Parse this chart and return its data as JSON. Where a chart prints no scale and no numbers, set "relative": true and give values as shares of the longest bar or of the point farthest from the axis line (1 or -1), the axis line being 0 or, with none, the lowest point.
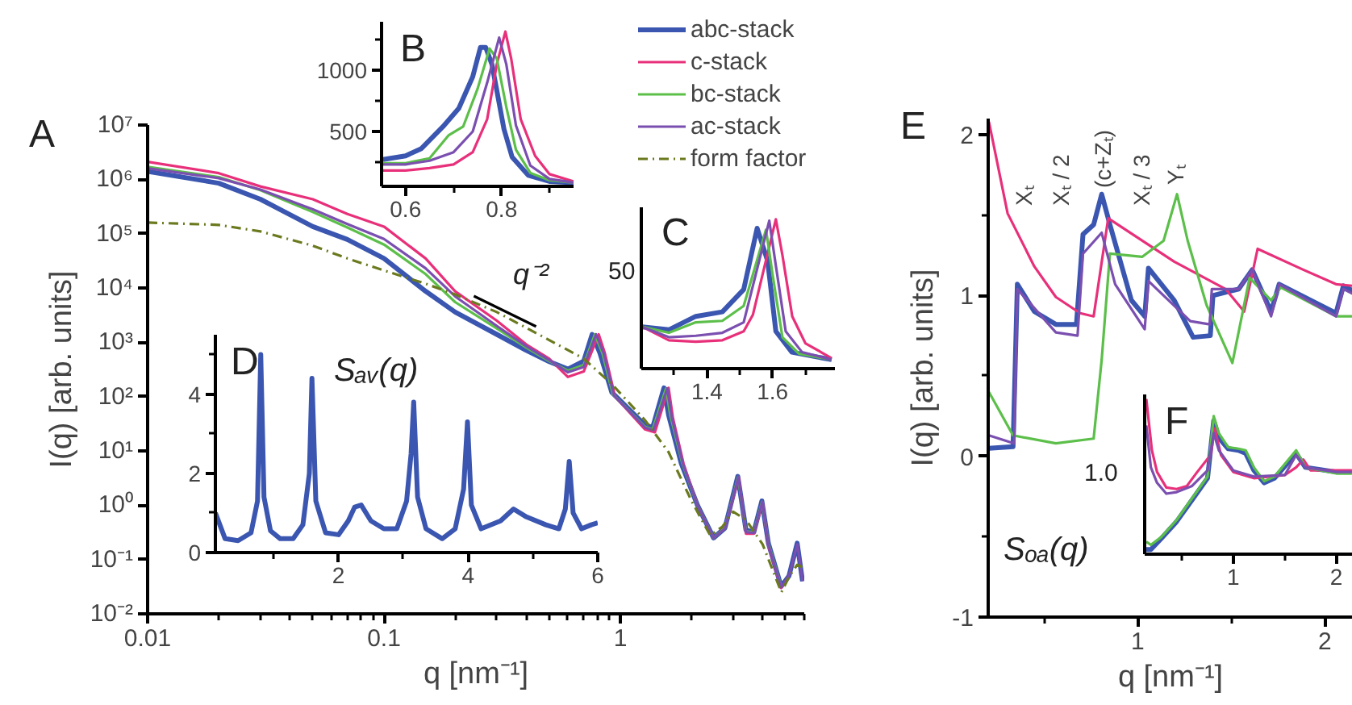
{
  "chart_data": [
    {
      "type": "line",
      "title": "A",
      "xlabel": "q [nm⁻¹]",
      "ylabel": "I(q) [arb. units]",
      "log": "xy",
      "legend": "top",
      "xlim": [
        0.01,
        6
      ],
      "ylim": [
        0.01,
        10000000.0
      ],
      "xticks": [
        0.01,
        {
          "value": 0.02,
          "label": null
        },
        {
          "value": 0.03,
          "label": null
        },
        {
          "value": 0.04,
          "label": null
        },
        {
          "value": 0.05,
          "label": null
        },
        {
          "value": 0.06,
          "label": null
        },
        {
          "value": 0.07,
          "label": null
        },
        {
          "value": 0.08,
          "label": null
        },
        {
          "value": 0.09,
          "label": null
        },
        0.1,
        {
          "value": 0.2,
          "label": null
        },
        {
          "value": 0.3,
          "label": null
        },
        {
          "value": 0.4,
          "label": null
        },
        {
          "value": 0.5,
          "label": null
        },
        {
          "value": 0.6,
          "label": null
        },
        {
          "value": 0.7,
          "label": null
        },
        {
          "value": 0.8,
          "label": null
        },
        {
          "value": 0.9,
          "label": null
        },
        1,
        {
          "value": 2,
          "label": null
        },
        {
          "value": 3,
          "label": null
        },
        {
          "value": 4,
          "label": null
        },
        {
          "value": 5,
          "label": null
        },
        {
          "value": 6,
          "label": null
        }
      ],
      "yticks": [
        {
          "value": 0.01,
          "label": "10⁻²"
        },
        {
          "value": 0.1,
          "label": "10⁻¹"
        },
        {
          "value": 1,
          "label": "10⁰"
        },
        {
          "value": 10,
          "label": "10¹"
        },
        {
          "value": 100,
          "label": "10²"
        },
        {
          "value": 1000,
          "label": "10³"
        },
        {
          "value": 10000.0,
          "label": "10⁴"
        },
        {
          "value": 100000.0,
          "label": "10⁵"
        },
        {
          "value": 1000000.0,
          "label": "10⁶"
        },
        {
          "value": 10000000.0,
          "label": "10⁷"
        }
      ],
      "annotations": [
        "q⁻²"
      ],
      "series": [
        {
          "name": "abc-stack",
          "color": "#3a56b0",
          "x": [
            0.01,
            0.02,
            0.03,
            0.05,
            0.07,
            0.1,
            0.15,
            0.2,
            0.3,
            0.4,
            0.5,
            0.6,
            0.7,
            0.76,
            0.82,
            0.92,
            1.27,
            1.37,
            1.53,
            1.6,
            1.81,
            2.12,
            2.48,
            2.77,
            3.14,
            3.4,
            3.67,
            3.97,
            4.23,
            4.79,
            5.17,
            5.6,
            5.9
          ],
          "values": [
            1400000.0,
            850000.0,
            430000.0,
            135000.0,
            78000.0,
            35000.0,
            8700.0,
            3600.0,
            1400,
            710,
            440,
            320,
            450,
            1400,
            630,
            120,
            30,
            27,
            145,
            46,
            5.9,
            1.0,
            0.25,
            0.38,
            3.4,
            0.35,
            0.32,
            1.2,
            0.2,
            0.032,
            0.05,
            0.2,
            0.04
          ]
        },
        {
          "name": "c-stack",
          "color": "#e8307a",
          "x": [
            0.01,
            0.02,
            0.03,
            0.05,
            0.07,
            0.1,
            0.15,
            0.2,
            0.3,
            0.4,
            0.5,
            0.6,
            0.7,
            0.81,
            0.86,
            0.95,
            1.27,
            1.4,
            1.6,
            1.67,
            1.85,
            2.12,
            2.48,
            2.77,
            3.17,
            3.4,
            3.67,
            4.0,
            4.23,
            4.79,
            5.17
          ],
          "values": [
            2100000.0,
            1300000.0,
            740000.0,
            430000.0,
            230000.0,
            135000.0,
            35000.0,
            8700.0,
            2500,
            910,
            500,
            230,
            290,
            1400,
            630,
            100,
            25,
            22,
            145,
            40,
            5.9,
            1.0,
            0.25,
            0.38,
            3.2,
            0.3,
            0.3,
            1.1,
            0.18,
            0.03,
            0.05
          ]
        },
        {
          "name": "bc-stack",
          "color": "#5cbf4a",
          "x": [
            0.01,
            0.02,
            0.03,
            0.05,
            0.07,
            0.1,
            0.15,
            0.2,
            0.3,
            0.4,
            0.5,
            0.6,
            0.7,
            0.78,
            0.84,
            0.93,
            1.27,
            1.37,
            1.56,
            1.63,
            1.83,
            2.12,
            2.48,
            2.77,
            3.15,
            3.4,
            3.67,
            3.98,
            4.23,
            4.79
          ],
          "values": [
            1700000.0,
            1100000.0,
            630000.0,
            250000.0,
            130000.0,
            63000.0,
            18000.0,
            5500.0,
            1800,
            800,
            450,
            300,
            380,
            1400,
            630,
            110,
            28,
            25,
            140,
            44,
            5.9,
            1.0,
            0.25,
            0.38,
            3.3,
            0.33,
            0.32,
            1.15,
            0.2,
            0.032
          ]
        },
        {
          "name": "ac-stack",
          "color": "#7a4fb0",
          "x": [
            0.01,
            0.02,
            0.03,
            0.05,
            0.07,
            0.1,
            0.15,
            0.2,
            0.3,
            0.4,
            0.5,
            0.6,
            0.7,
            0.79,
            0.85,
            0.94,
            1.27,
            1.38,
            1.58,
            1.65,
            1.84,
            2.12,
            2.48,
            2.77,
            3.16,
            3.4,
            3.67,
            3.99,
            4.23,
            4.79,
            5.17,
            5.61,
            5.9
          ],
          "values": [
            1600000.0,
            1050000.0,
            650000.0,
            280000.0,
            150000.0,
            80000.0,
            23000.0,
            7000.0,
            2000,
            850,
            470,
            280,
            350,
            1400,
            630,
            105,
            27,
            24,
            142,
            42,
            5.8,
            1.0,
            0.25,
            0.37,
            3.3,
            0.32,
            0.31,
            1.15,
            0.19,
            0.031,
            0.05,
            0.19,
            0.04
          ]
        },
        {
          "name": "form factor",
          "color": "#6b7a1e",
          "line_style": "dashdot",
          "x": [
            0.01,
            0.02,
            0.03,
            0.05,
            0.07,
            0.1,
            0.15,
            0.2,
            0.3,
            0.5,
            0.7,
            0.92,
            1.27,
            1.6,
            2.0,
            2.4,
            2.7,
            3.0,
            3.4,
            4.0,
            4.8,
            5.2,
            5.6,
            6.0
          ],
          "values": [
            160000.0,
            145000.0,
            110000.0,
            60000.0,
            35000.0,
            21000.0,
            12000.0,
            7600.0,
            3600,
            1100,
            500,
            170,
            37,
            9.5,
            1.2,
            0.28,
            0.4,
            0.76,
            0.54,
            0.19,
            0.025,
            0.05,
            0.08,
            0.07
          ]
        },
        {
          "color": "#000000",
          "x": [
            0.24,
            0.44
          ],
          "values": [
            7100,
            1950
          ]
        }
      ]
    },
    {
      "type": "line",
      "title": "B",
      "xlim": [
        0.55,
        0.95
      ],
      "ylim": [
        50,
        1400
      ],
      "xticks": [
        0.6,
        {
          "value": 0.7,
          "label": null
        },
        0.8,
        {
          "value": 0.9,
          "label": null
        }
      ],
      "yticks": [
        {
          "value": 250,
          "label": null
        },
        500,
        {
          "value": 750,
          "label": null
        },
        1000,
        {
          "value": 1250,
          "label": null
        }
      ],
      "series": [
        {
          "color": "#3a56b0",
          "x": [
            0.553,
            0.6,
            0.633,
            0.678,
            0.711,
            0.74,
            0.756,
            0.767,
            0.78,
            0.789,
            0.805,
            0.822,
            0.856,
            0.9,
            0.95
          ],
          "values": [
            270,
            300,
            360,
            540,
            690,
            950,
            1190,
            1190,
            1050,
            860,
            520,
            290,
            140,
            90,
            80
          ]
        },
        {
          "color": "#e8307a",
          "x": [
            0.553,
            0.6,
            0.65,
            0.7,
            0.74,
            0.77,
            0.79,
            0.808,
            0.82,
            0.84,
            0.87,
            0.9,
            0.95
          ],
          "values": [
            180,
            180,
            200,
            230,
            330,
            600,
            1050,
            1320,
            1100,
            600,
            300,
            150,
            90
          ]
        },
        {
          "color": "#5cbf4a",
          "x": [
            0.553,
            0.6,
            0.65,
            0.69,
            0.72,
            0.75,
            0.775,
            0.79,
            0.81,
            0.83,
            0.86,
            0.9,
            0.95
          ],
          "values": [
            240,
            240,
            280,
            470,
            540,
            850,
            1180,
            1100,
            700,
            350,
            160,
            100,
            80
          ]
        },
        {
          "color": "#7a4fb0",
          "x": [
            0.553,
            0.6,
            0.65,
            0.7,
            0.74,
            0.77,
            0.795,
            0.81,
            0.83,
            0.86,
            0.9,
            0.95
          ],
          "values": [
            230,
            230,
            260,
            330,
            500,
            900,
            1270,
            1050,
            550,
            220,
            110,
            80
          ]
        }
      ]
    },
    {
      "type": "line",
      "title": "C",
      "relative": true,
      "xlim": [
        1.2,
        1.79
      ],
      "xticks": [
        {
          "value": 1.3,
          "label": null
        },
        1.4,
        {
          "value": 1.5,
          "label": null
        },
        1.6,
        {
          "value": 1.7,
          "label": null
        }
      ],
      "annotations": [
        "50"
      ],
      "series": [
        {
          "color": "#3a56b0",
          "x": [
            1.203,
            1.284,
            1.366,
            1.447,
            1.512,
            1.553,
            1.585,
            1.61,
            1.659,
            1.78
          ],
          "values": [
            0.28,
            0.26,
            0.35,
            0.38,
            0.53,
            0.94,
            0.72,
            0.25,
            0.11,
            0.06
          ]
        },
        {
          "color": "#e8307a",
          "x": [
            1.203,
            1.284,
            1.366,
            1.447,
            1.512,
            1.54,
            1.61,
            1.63,
            1.66,
            1.7,
            1.78
          ],
          "values": [
            0.28,
            0.19,
            0.18,
            0.19,
            0.25,
            0.36,
            1,
            0.76,
            0.35,
            0.17,
            0.07
          ]
        },
        {
          "color": "#5cbf4a",
          "x": [
            1.203,
            1.284,
            1.366,
            1.447,
            1.512,
            1.58,
            1.6,
            1.63,
            1.68,
            1.78
          ],
          "values": [
            0.28,
            0.24,
            0.31,
            0.32,
            0.42,
            0.93,
            0.63,
            0.21,
            0.1,
            0.06
          ]
        },
        {
          "color": "#7a4fb0",
          "x": [
            1.203,
            1.284,
            1.366,
            1.447,
            1.512,
            1.59,
            1.61,
            1.64,
            1.69,
            1.78
          ],
          "values": [
            0.28,
            0.21,
            0.22,
            0.24,
            0.31,
            0.99,
            0.69,
            0.25,
            0.11,
            0.06
          ]
        }
      ]
    },
    {
      "type": "line",
      "title": "D",
      "xlim": [
        0.1,
        6
      ],
      "ylim": [
        0,
        5.5
      ],
      "xticks": [
        {
          "value": 1,
          "label": null
        },
        2,
        {
          "value": 3,
          "label": null
        },
        4,
        {
          "value": 5,
          "label": null
        },
        6
      ],
      "yticks": [
        0,
        {
          "value": 1,
          "label": null
        },
        2,
        {
          "value": 3,
          "label": null
        },
        4,
        {
          "value": 5,
          "label": null
        }
      ],
      "annotations": [
        "Sₐᵥ(q)"
      ],
      "series": [
        {
          "color": "#3a56b0",
          "x": [
            0.1,
            0.25,
            0.45,
            0.65,
            0.75,
            0.8,
            0.85,
            0.95,
            1.1,
            1.3,
            1.45,
            1.55,
            1.59,
            1.65,
            1.8,
            2.0,
            2.15,
            2.25,
            2.35,
            2.5,
            2.7,
            2.9,
            3.05,
            3.12,
            3.16,
            3.22,
            3.35,
            3.6,
            3.8,
            3.93,
            3.99,
            4.05,
            4.2,
            4.5,
            4.7,
            4.9,
            5.2,
            5.4,
            5.5,
            5.56,
            5.62,
            5.75,
            5.9,
            6.0
          ],
          "values": [
            1.0,
            0.35,
            0.3,
            0.5,
            1.3,
            5.0,
            1.4,
            0.55,
            0.35,
            0.35,
            0.7,
            2.0,
            4.4,
            1.3,
            0.5,
            0.45,
            0.8,
            1.15,
            1.2,
            0.8,
            0.6,
            0.6,
            1.3,
            2.5,
            3.8,
            1.4,
            0.6,
            0.35,
            0.6,
            1.6,
            3.3,
            1.2,
            0.6,
            0.8,
            1.1,
            0.9,
            0.7,
            0.6,
            1.1,
            2.3,
            1.0,
            0.6,
            0.7,
            0.75
          ]
        }
      ]
    },
    {
      "type": "line",
      "title": "E",
      "xlabel": "q [nm⁻¹]",
      "ylabel": "I(q) [arb. units]",
      "xlim": [
        0.2,
        2.15
      ],
      "ylim": [
        -1,
        2.1
      ],
      "xticks": [
        {
          "value": 0.5,
          "label": null
        },
        1,
        {
          "value": 1.5,
          "label": null
        },
        2
      ],
      "yticks": [
        -1,
        {
          "value": -0.5,
          "label": null
        },
        0,
        {
          "value": 0.5,
          "label": null
        },
        1,
        {
          "value": 1.5,
          "label": null
        },
        2
      ],
      "annotations": [
        "Xₜ",
        "Xₜ / 2",
        "(c+Zₜ)",
        "Xₜ / 3",
        "Yₜ",
        "Sₒₐ(q)"
      ],
      "series": [
        {
          "color": "#3a56b0",
          "x": [
            0.204,
            0.333,
            0.356,
            0.447,
            0.562,
            0.672,
            0.707,
            0.764,
            0.807,
            0.851,
            0.966,
            1.037,
            1.057,
            1.195,
            1.296,
            1.388,
            1.402,
            1.54,
            1.612,
            1.713,
            1.756,
            2.06,
            2.1,
            2.15
          ],
          "values": [
            0.05,
            0.06,
            1.07,
            0.9,
            0.82,
            0.82,
            1.38,
            1.44,
            1.63,
            1.44,
            0.97,
            0.87,
            1.17,
            0.97,
            0.74,
            0.75,
            1.0,
            1.04,
            1.16,
            0.9,
            1.07,
            0.89,
            1.06,
            1.03
          ]
        },
        {
          "color": "#e8307a",
          "x": [
            0.204,
            0.304,
            0.447,
            0.562,
            0.692,
            0.764,
            0.842,
            1.195,
            1.47,
            1.569,
            1.641,
            1.885,
            2.06,
            2.15
          ],
          "values": [
            2.08,
            1.51,
            1.18,
            0.99,
            0.89,
            0.87,
            1.48,
            1.21,
            1.04,
            0.9,
            1.29,
            1.16,
            1.07,
            1.06
          ]
        },
        {
          "color": "#5cbf4a",
          "x": [
            0.204,
            0.333,
            0.562,
            0.764,
            0.807,
            0.851,
            1.023,
            1.138,
            1.21,
            1.267,
            1.368,
            1.506,
            1.598,
            1.713,
            1.765,
            2.06,
            2.15
          ],
          "values": [
            0.4,
            0.13,
            0.08,
            0.11,
            0.6,
            1.26,
            1.24,
            1.34,
            1.63,
            1.34,
            0.94,
            0.58,
            1.11,
            0.97,
            1.05,
            0.87,
            0.87
          ]
        },
        {
          "color": "#7a4fb0",
          "x": [
            0.204,
            0.339,
            0.356,
            0.562,
            0.678,
            0.707,
            0.807,
            0.879,
            1.037,
            1.057,
            1.281,
            1.385,
            1.396,
            1.54,
            1.612,
            1.713,
            1.756,
            2.06,
            2.1,
            2.15
          ],
          "values": [
            0.13,
            0.08,
            1.04,
            0.77,
            0.75,
            1.26,
            1.39,
            1.07,
            0.79,
            1.09,
            0.84,
            0.82,
            1.04,
            1.04,
            1.16,
            0.87,
            1.07,
            0.87,
            1.04,
            1.01
          ]
        }
      ]
    },
    {
      "type": "line",
      "title": "F",
      "relative": true,
      "xlim": [
        0.14,
        2.16
      ],
      "xticks": [
        {
          "value": 0.5,
          "label": null
        },
        1,
        {
          "value": 1.5,
          "label": null
        },
        2
      ],
      "annotations": [
        "1.0"
      ],
      "series": [
        {
          "color": "#3a56b0",
          "x": [
            0.156,
            0.2,
            0.3,
            0.45,
            0.6,
            0.75,
            0.81,
            0.86,
            0.95,
            1.05,
            1.12,
            1.2,
            1.3,
            1.4,
            1.61,
            1.7,
            2.0,
            2.15
          ],
          "values": [
            0.03,
            0.03,
            0.1,
            0.21,
            0.35,
            0.49,
            0.86,
            0.75,
            0.68,
            0.67,
            0.65,
            0.54,
            0.46,
            0.49,
            0.65,
            0.56,
            0.53,
            0.53
          ]
        },
        {
          "color": "#e8307a",
          "x": [
            0.156,
            0.21,
            0.26,
            0.35,
            0.45,
            0.55,
            0.65,
            0.78,
            0.82,
            0.88,
            1.0,
            1.2,
            1.5,
            1.61,
            1.68,
            1.75,
            2.0,
            2.15
          ],
          "values": [
            1,
            0.67,
            0.53,
            0.43,
            0.42,
            0.44,
            0.53,
            0.64,
            0.81,
            0.64,
            0.53,
            0.49,
            0.51,
            0.56,
            0.61,
            0.54,
            0.54,
            0.54
          ]
        },
        {
          "color": "#5cbf4a",
          "x": [
            0.156,
            0.2,
            0.3,
            0.45,
            0.6,
            0.75,
            0.81,
            0.86,
            0.95,
            1.05,
            1.12,
            1.2,
            1.3,
            1.4,
            1.61,
            1.7,
            2.0,
            2.15
          ],
          "values": [
            0.08,
            0.06,
            0.11,
            0.22,
            0.36,
            0.5,
            0.89,
            0.78,
            0.69,
            0.68,
            0.67,
            0.56,
            0.47,
            0.5,
            0.67,
            0.56,
            0.52,
            0.52
          ]
        },
        {
          "color": "#7a4fb0",
          "x": [
            0.156,
            0.2,
            0.26,
            0.35,
            0.45,
            0.6,
            0.75,
            0.81,
            0.86,
            1.0,
            1.2,
            1.5,
            1.61,
            1.7,
            2.0,
            2.15
          ],
          "values": [
            0.83,
            0.56,
            0.46,
            0.39,
            0.4,
            0.44,
            0.54,
            0.78,
            0.67,
            0.54,
            0.5,
            0.51,
            0.64,
            0.56,
            0.53,
            0.53
          ]
        }
      ]
    }
  ]
}
